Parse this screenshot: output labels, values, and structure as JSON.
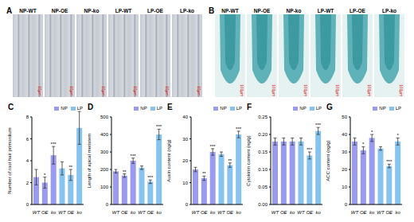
{
  "images": [
    {
      "title": "A",
      "labels": [
        "NP-WT",
        "NP-OE",
        "NP-ko",
        "LP-WT",
        "LP-OE",
        "LP-ko"
      ],
      "scale_bar": "10μm"
    },
    {
      "title": "B",
      "labels": [
        "NP-WT",
        "NP-OE",
        "NP-ko",
        "LP-WT",
        "LP-OE",
        "LP-ko"
      ],
      "scale_bar": "100μm"
    }
  ],
  "chart_data": [
    {
      "type": "bar",
      "title": "C",
      "y_label": "Number of root hair primordium",
      "categories": [
        "WT",
        "OE",
        "ko",
        "WT",
        "OE",
        "ko"
      ],
      "series": [
        {
          "name": "NP",
          "color": "#9a9aee",
          "values": [
            2.5,
            2.0,
            4.5,
            null,
            null,
            null
          ],
          "errors": [
            0.7,
            0.5,
            0.8,
            null,
            null,
            null
          ],
          "annotations": [
            null,
            "*",
            "***",
            null,
            null,
            null
          ]
        },
        {
          "name": "LP",
          "color": "#86c3ef",
          "values": [
            null,
            null,
            null,
            3.3,
            2.7,
            7.0
          ],
          "errors": [
            null,
            null,
            null,
            0.6,
            0.5,
            1.5
          ],
          "annotations": [
            null,
            null,
            null,
            null,
            "**",
            "***"
          ]
        }
      ],
      "ylim": [
        0,
        8
      ],
      "yticks": [
        0,
        2,
        4,
        6,
        8
      ],
      "legend": "upper right"
    },
    {
      "type": "bar",
      "title": "D",
      "y_label": "Length of apical meristem",
      "categories": [
        "WT",
        "OE",
        "ko",
        "WT",
        "OE",
        "ko"
      ],
      "series": [
        {
          "name": "NP",
          "color": "#9a9aee",
          "values": [
            190,
            165,
            250,
            null,
            null,
            null
          ],
          "errors": [
            10,
            10,
            15,
            null,
            null,
            null
          ],
          "annotations": [
            null,
            "**",
            "***",
            null,
            null,
            null
          ]
        },
        {
          "name": "LP",
          "color": "#86c3ef",
          "values": [
            null,
            null,
            null,
            210,
            130,
            400
          ],
          "errors": [
            null,
            null,
            null,
            10,
            10,
            30
          ],
          "annotations": [
            null,
            null,
            null,
            null,
            "***",
            "***"
          ]
        }
      ],
      "ylim": [
        0,
        500
      ],
      "yticks": [
        0,
        100,
        200,
        300,
        400,
        500
      ],
      "legend": "upper right"
    },
    {
      "type": "bar",
      "title": "E",
      "y_label": "Auxin content (ng/g)",
      "categories": [
        "WT",
        "OE",
        "ko",
        "WT",
        "OE",
        "ko"
      ],
      "series": [
        {
          "name": "NP",
          "color": "#9a9aee",
          "values": [
            16,
            12,
            24,
            null,
            null,
            null
          ],
          "errors": [
            1,
            1,
            1.5,
            null,
            null,
            null
          ],
          "annotations": [
            null,
            "**",
            "***",
            null,
            null,
            null
          ]
        },
        {
          "name": "LP",
          "color": "#86c3ef",
          "values": [
            null,
            null,
            null,
            23,
            18,
            32
          ],
          "errors": [
            null,
            null,
            null,
            1,
            1,
            1.5
          ],
          "annotations": [
            null,
            null,
            null,
            null,
            "**",
            "***"
          ]
        }
      ],
      "ylim": [
        0,
        40
      ],
      "yticks": [
        0,
        10,
        20,
        30,
        40
      ],
      "legend": "upper right"
    },
    {
      "type": "bar",
      "title": "F",
      "y_label": "Cytokinin content (ng/g)",
      "categories": [
        "WT",
        "OE",
        "ko",
        "WT",
        "OE",
        "ko"
      ],
      "series": [
        {
          "name": "NP",
          "color": "#9a9aee",
          "values": [
            0.18,
            0.18,
            0.18,
            null,
            null,
            null
          ],
          "errors": [
            0.01,
            0.01,
            0.01,
            null,
            null,
            null
          ],
          "annotations": [
            null,
            null,
            null,
            null,
            null,
            null
          ]
        },
        {
          "name": "LP",
          "color": "#86c3ef",
          "values": [
            null,
            null,
            null,
            0.18,
            0.14,
            0.21
          ],
          "errors": [
            null,
            null,
            null,
            0.01,
            0.01,
            0.01
          ],
          "annotations": [
            null,
            null,
            null,
            null,
            "***",
            "***"
          ]
        }
      ],
      "ylim": [
        0,
        0.25
      ],
      "yticks": [
        {
          "value": 0,
          "label": "0.00"
        },
        0.05,
        {
          "value": 0.1,
          "label": "0.10"
        },
        0.15,
        {
          "value": 0.2,
          "label": "0.20"
        },
        0.25
      ],
      "legend": "upper right"
    },
    {
      "type": "bar",
      "title": "G",
      "y_label": "ACC content (ng/g)",
      "categories": [
        "WT",
        "OE",
        "ko",
        "WT",
        "OE",
        "ko"
      ],
      "series": [
        {
          "name": "NP",
          "color": "#9a9aee",
          "values": [
            36,
            31,
            38,
            null,
            null,
            null
          ],
          "errors": [
            2,
            2,
            2,
            null,
            null,
            null
          ],
          "annotations": [
            null,
            "*",
            "*",
            null,
            null,
            null
          ]
        },
        {
          "name": "LP",
          "color": "#86c3ef",
          "values": [
            null,
            null,
            null,
            32,
            22,
            36
          ],
          "errors": [
            null,
            null,
            null,
            1,
            1,
            2
          ],
          "annotations": [
            null,
            null,
            null,
            null,
            "***",
            "*"
          ]
        }
      ],
      "ylim": [
        0,
        50
      ],
      "yticks": [
        0,
        10,
        20,
        30,
        40,
        50
      ],
      "legend": "upper right"
    }
  ]
}
